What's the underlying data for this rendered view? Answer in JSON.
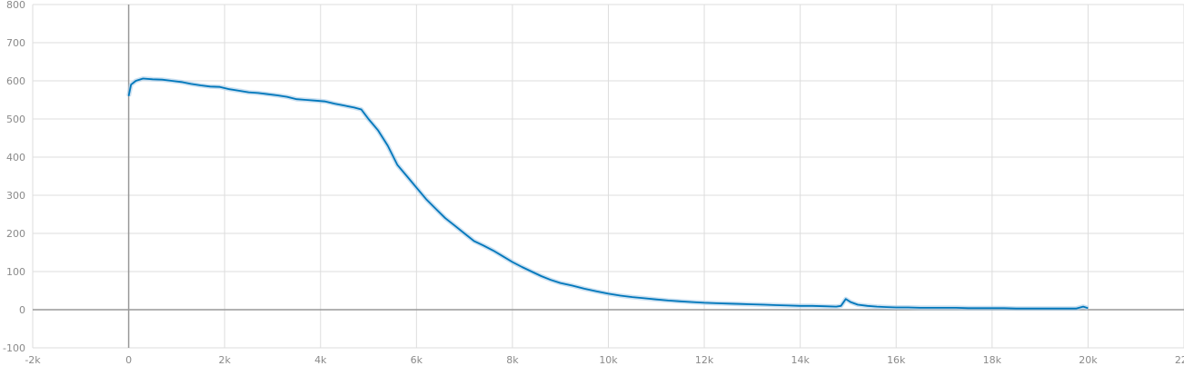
{
  "chart_data": {
    "type": "line",
    "title": "",
    "xlabel": "",
    "ylabel": "",
    "xlim": [
      -2000,
      22000
    ],
    "ylim": [
      -100,
      800
    ],
    "grid": true,
    "x_tick_values": [
      -2000,
      0,
      2000,
      4000,
      6000,
      8000,
      10000,
      12000,
      14000,
      16000,
      18000,
      20000,
      22000
    ],
    "x_tick_labels": [
      "-2k",
      "0",
      "2k",
      "4k",
      "6k",
      "8k",
      "10k",
      "12k",
      "14k",
      "16k",
      "18k",
      "20k",
      "22k"
    ],
    "y_tick_values": [
      -100,
      0,
      100,
      200,
      300,
      400,
      500,
      600,
      700,
      800
    ],
    "y_tick_labels": [
      "-100",
      "0",
      "100",
      "200",
      "300",
      "400",
      "500",
      "600",
      "700",
      "800"
    ],
    "colors": {
      "smoothed": "#0077bb",
      "raw": "#a9cce8",
      "grid": "#dddddd",
      "axis": "#999999"
    },
    "series": [
      {
        "x": [
          0,
          50,
          150,
          300,
          500,
          700,
          900,
          1100,
          1300,
          1500,
          1700,
          1900,
          2100,
          2300,
          2500,
          2700,
          2900,
          3100,
          3300,
          3500,
          3700,
          3900,
          4100,
          4300,
          4500,
          4700,
          4850,
          5000,
          5200,
          5400,
          5600,
          5800,
          6000,
          6200,
          6400,
          6600,
          6800,
          7000,
          7200,
          7400,
          7600,
          7800,
          8000,
          8200,
          8400,
          8600,
          8800,
          9000,
          9250,
          9500,
          9750,
          10000,
          10250,
          10500,
          10750,
          11000,
          11250,
          11500,
          11750,
          12000,
          12250,
          12500,
          12750,
          13000,
          13250,
          13500,
          13750,
          14000,
          14250,
          14500,
          14750,
          14850,
          14950,
          15050,
          15200,
          15400,
          15600,
          15800,
          16000,
          16250,
          16500,
          16750,
          17000,
          17250,
          17500,
          17750,
          18000,
          18250,
          18500,
          18750,
          19000,
          19250,
          19500,
          19750,
          19900,
          20000
        ],
        "y": [
          560,
          590,
          600,
          606,
          604,
          603,
          600,
          597,
          592,
          588,
          585,
          584,
          578,
          574,
          570,
          568,
          565,
          562,
          558,
          552,
          550,
          548,
          546,
          540,
          535,
          530,
          525,
          500,
          470,
          430,
          380,
          350,
          320,
          290,
          265,
          240,
          220,
          200,
          180,
          168,
          155,
          140,
          125,
          112,
          100,
          88,
          78,
          70,
          63,
          55,
          48,
          42,
          37,
          33,
          30,
          27,
          24,
          22,
          20,
          18,
          17,
          16,
          15,
          14,
          13,
          12,
          11,
          10,
          10,
          9,
          8,
          10,
          28,
          20,
          13,
          10,
          8,
          7,
          6,
          6,
          5,
          5,
          5,
          5,
          4,
          4,
          4,
          4,
          3,
          3,
          3,
          3,
          3,
          3,
          8,
          4
        ]
      }
    ]
  }
}
